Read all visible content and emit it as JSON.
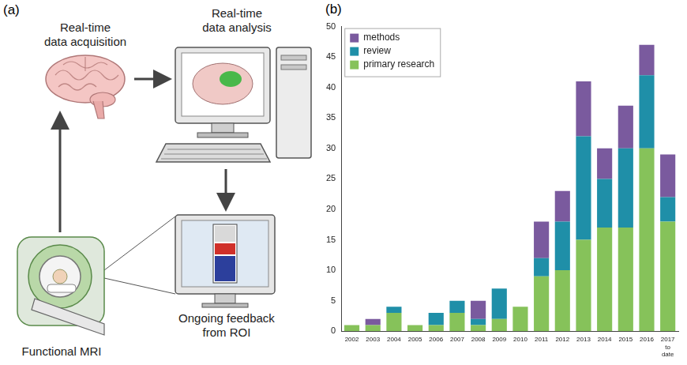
{
  "diagram": {
    "panel": "(a)",
    "nodes": [
      {
        "label": "Real-time data acquisition"
      },
      {
        "label": "Real-time data analysis"
      },
      {
        "label": "Ongoing feedback from ROI"
      },
      {
        "label": "Functional MRI"
      }
    ]
  },
  "chart_panel": "(b)",
  "chart_data": {
    "type": "bar",
    "stacked": true,
    "grid": false,
    "legend": "upper left",
    "categories": [
      "2002",
      "2003",
      "2004",
      "2005",
      "2006",
      "2007",
      "2008",
      "2009",
      "2010",
      "2011",
      "2012",
      "2013",
      "2014",
      "2015",
      "2016",
      "2017 to date"
    ],
    "series": [
      {
        "name": "primary research",
        "color": "#86c25a",
        "values": [
          1,
          1,
          3,
          1,
          1,
          3,
          1,
          2,
          4,
          9,
          10,
          15,
          17,
          17,
          30,
          18
        ]
      },
      {
        "name": "review",
        "color": "#1f8fa8",
        "values": [
          0,
          0,
          1,
          0,
          2,
          2,
          1,
          5,
          0,
          3,
          8,
          17,
          8,
          13,
          12,
          4
        ]
      },
      {
        "name": "methods",
        "color": "#7a5a9e",
        "values": [
          0,
          1,
          0,
          0,
          0,
          0,
          3,
          0,
          0,
          6,
          5,
          9,
          5,
          7,
          5,
          7
        ]
      }
    ],
    "ylim": [
      0,
      50
    ],
    "yticks": [
      0,
      5,
      10,
      15,
      20,
      25,
      30,
      35,
      40,
      45,
      50
    ]
  }
}
